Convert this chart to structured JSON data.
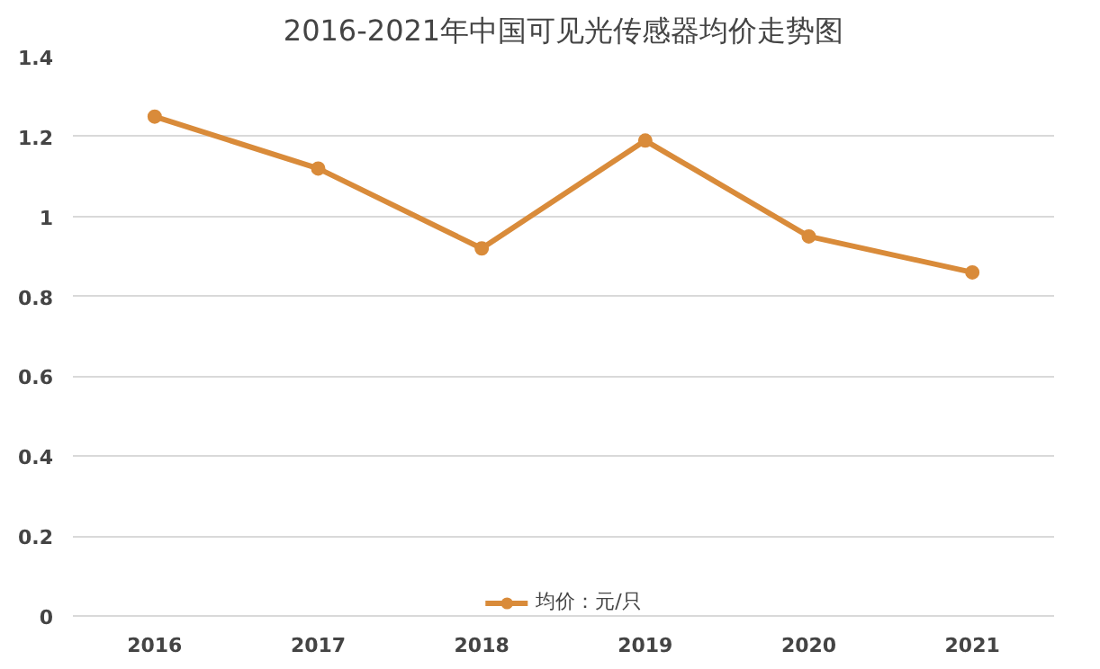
{
  "chart_data": {
    "type": "line",
    "title": "2016-2021年中国可见光传感器均价走势图",
    "categories": [
      "2016",
      "2017",
      "2018",
      "2019",
      "2020",
      "2021"
    ],
    "series": [
      {
        "name": "均价：元/只",
        "color": "#d98b3a",
        "values": [
          1.25,
          1.12,
          0.92,
          1.19,
          0.95,
          0.86
        ]
      }
    ],
    "ylim": [
      0,
      1.4
    ],
    "yticks": [
      0,
      0.2,
      0.4,
      0.6,
      0.8,
      1,
      1.2,
      1.4
    ],
    "grid": "y",
    "legend": "bottom",
    "marker": "circle",
    "line_style": "solid"
  }
}
